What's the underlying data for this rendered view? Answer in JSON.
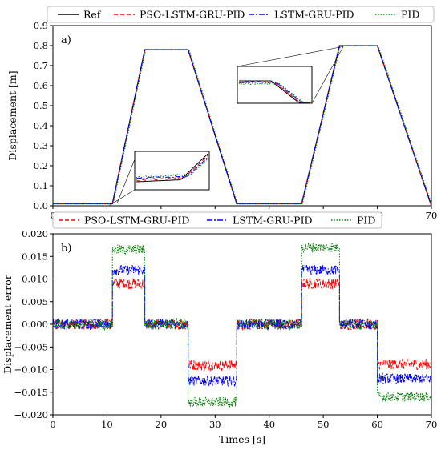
{
  "colors": {
    "ref": "#000000",
    "pso": "#ff0000",
    "lstm": "#0000ff",
    "pid": "#008000"
  },
  "chart_data": [
    {
      "type": "line",
      "panel_label": "a)",
      "xlabel": "",
      "ylabel": "Displacement [m]",
      "xlim": [
        0,
        70
      ],
      "ylim": [
        0,
        0.9
      ],
      "x_ticks": [
        0,
        10,
        20,
        30,
        40,
        50,
        60,
        70
      ],
      "y_ticks": [
        0.0,
        0.1,
        0.2,
        0.3,
        0.4,
        0.5,
        0.6,
        0.7,
        0.8,
        0.9
      ],
      "y_tick_labels": [
        "0.0",
        "0.1",
        "0.2",
        "0.3",
        "0.4",
        "0.5",
        "0.6",
        "0.7",
        "0.8",
        "0.9"
      ],
      "legend": {
        "placement": "top",
        "entries": [
          "Ref",
          "PSO-LSTM-GRU-PID",
          "LSTM-GRU-PID",
          "PID"
        ]
      },
      "series": [
        {
          "name": "Ref",
          "style": "solid",
          "x": [
            0,
            11,
            17,
            25,
            34,
            46,
            53,
            60,
            70
          ],
          "y": [
            0.01,
            0.01,
            0.78,
            0.78,
            0.01,
            0.01,
            0.8,
            0.8,
            0.0
          ]
        },
        {
          "name": "PSO-LSTM-GRU-PID",
          "style": "dashed",
          "x": [
            0,
            11,
            17,
            25,
            34,
            46,
            53,
            60,
            70
          ],
          "y": [
            0.01,
            0.01,
            0.78,
            0.78,
            0.01,
            0.01,
            0.8,
            0.8,
            0.0
          ]
        },
        {
          "name": "LSTM-GRU-PID",
          "style": "dashdot",
          "x": [
            0,
            11,
            17,
            25,
            34,
            46,
            53,
            60,
            70
          ],
          "y": [
            0.01,
            0.01,
            0.78,
            0.78,
            0.01,
            0.01,
            0.8,
            0.8,
            0.0
          ]
        },
        {
          "name": "PID",
          "style": "dotted",
          "x": [
            0,
            11,
            17,
            25,
            34,
            46,
            53,
            60,
            70
          ],
          "y": [
            0.01,
            0.01,
            0.78,
            0.78,
            0.01,
            0.01,
            0.8,
            0.8,
            0.0
          ]
        }
      ],
      "insets": [
        {
          "region_x": [
            10.5,
            12.5
          ],
          "region_y": [
            0.0,
            0.03
          ]
        },
        {
          "region_x": [
            52,
            54
          ],
          "region_y": [
            0.77,
            0.81
          ]
        }
      ]
    },
    {
      "type": "line",
      "panel_label": "b)",
      "xlabel": "Times [s]",
      "ylabel": "Displacement error",
      "xlim": [
        0,
        70
      ],
      "ylim": [
        -0.02,
        0.02
      ],
      "x_ticks": [
        0,
        10,
        20,
        30,
        40,
        50,
        60,
        70
      ],
      "y_ticks": [
        -0.02,
        -0.015,
        -0.01,
        -0.005,
        0.0,
        0.005,
        0.01,
        0.015,
        0.02
      ],
      "y_tick_labels": [
        "−0.020",
        "−0.015",
        "−0.010",
        "−0.005",
        "0.000",
        "0.005",
        "0.010",
        "0.015",
        "0.020"
      ],
      "legend": {
        "placement": "top",
        "entries": [
          "PSO-LSTM-GRU-PID",
          "LSTM-GRU-PID",
          "PID"
        ]
      },
      "series": [
        {
          "name": "PSO-LSTM-GRU-PID",
          "style": "dashed",
          "segments": [
            [
              0,
              11,
              0.0
            ],
            [
              11,
              17,
              0.009
            ],
            [
              17,
              25,
              0.0
            ],
            [
              25,
              34,
              -0.009
            ],
            [
              34,
              46,
              0.0
            ],
            [
              46,
              53,
              0.009
            ],
            [
              53,
              60,
              0.0
            ],
            [
              60,
              70,
              -0.0088
            ]
          ]
        },
        {
          "name": "LSTM-GRU-PID",
          "style": "dashdot",
          "segments": [
            [
              0,
              11,
              0.0
            ],
            [
              11,
              17,
              0.012
            ],
            [
              17,
              25,
              0.0
            ],
            [
              25,
              34,
              -0.0125
            ],
            [
              34,
              46,
              0.0
            ],
            [
              46,
              53,
              0.012
            ],
            [
              53,
              60,
              0.0
            ],
            [
              60,
              70,
              -0.012
            ]
          ]
        },
        {
          "name": "PID",
          "style": "dotted",
          "segments": [
            [
              0,
              11,
              0.0
            ],
            [
              11,
              17,
              0.0165
            ],
            [
              17,
              25,
              0.0
            ],
            [
              25,
              34,
              -0.0172
            ],
            [
              34,
              46,
              0.0
            ],
            [
              46,
              53,
              0.017
            ],
            [
              53,
              60,
              0.0
            ],
            [
              60,
              70,
              -0.016
            ]
          ]
        }
      ]
    }
  ]
}
